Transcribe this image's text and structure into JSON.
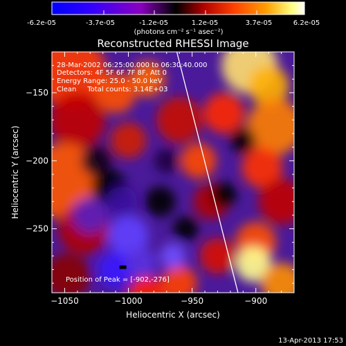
{
  "colorbar": {
    "tick_labels": [
      "-6.2e-05",
      "-3.7e-05",
      "-1.2e-05",
      "1.2e-05",
      "3.7e-05",
      "6.2e-05"
    ],
    "unit_label": "(photons cm⁻² s⁻¹ asec⁻²)",
    "colors": [
      "#0000ff",
      "#5a00ff",
      "#8a00c0",
      "#000000",
      "#a00000",
      "#ff4000",
      "#ffa000",
      "#ffff80",
      "#ffffff"
    ]
  },
  "chart_data": {
    "type": "heatmap",
    "title": "Reconstructed RHESSI Image",
    "xlabel": "Heliocentric X (arcsec)",
    "ylabel": "Heliocentric Y (arcsec)",
    "xlim": [
      -1060,
      -870
    ],
    "ylim": [
      -297,
      -120
    ],
    "x_ticks": [
      -1050,
      -1000,
      -950,
      -900
    ],
    "x_tick_labels": [
      "−1050",
      "−1000",
      "−950",
      "−900"
    ],
    "y_ticks": [
      -150,
      -200,
      -250
    ],
    "y_tick_labels": [
      "−150",
      "−200",
      "−250"
    ],
    "annotations": [
      "28-Mar-2002 06:25:00.000 to 06:30:40.000",
      "Detectors: 4F 5F 6F 7F 8F, Att 0",
      "Energy Range: 25.0 - 50.0 keV",
      "Clean     Total counts: 3.14E+03"
    ],
    "peak_label": "Position of Peak = [-902,-276]",
    "peak_position": [
      -902,
      -276
    ],
    "limb_line": [
      [
        -962,
        -120
      ],
      [
        -914,
        -297
      ]
    ]
  },
  "footer": {
    "timestamp": "13-Apr-2013 17:53"
  }
}
